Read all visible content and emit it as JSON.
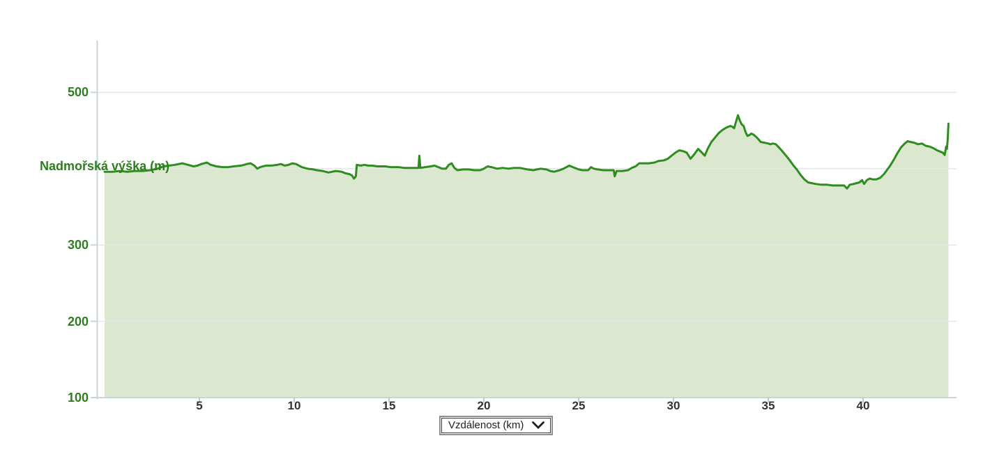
{
  "chart_data": {
    "type": "area",
    "title": "",
    "ylabel": "Nadmořská výška (m)",
    "xlabel": "Vzdálenost (km)",
    "x_unit": "km",
    "y_unit": "m",
    "xlim": [
      0,
      44.6
    ],
    "ylim": [
      100,
      568
    ],
    "grid": "horizontal-only",
    "legend": "none",
    "y_gridlines": [
      200,
      300,
      400,
      500
    ],
    "y_ticks": [
      {
        "value": 100,
        "label": "100"
      },
      {
        "value": 200,
        "label": "200"
      },
      {
        "value": 300,
        "label": "300"
      },
      {
        "value": 500,
        "label": "500"
      }
    ],
    "x_ticks": [
      {
        "value": 5,
        "label": "5"
      },
      {
        "value": 10,
        "label": "10"
      },
      {
        "value": 15,
        "label": "15"
      },
      {
        "value": 20,
        "label": "20"
      },
      {
        "value": 25,
        "label": "25"
      },
      {
        "value": 30,
        "label": "30"
      },
      {
        "value": 35,
        "label": "35"
      },
      {
        "value": 40,
        "label": "40"
      }
    ],
    "colors": {
      "line": "#2f8d20",
      "fill": "#dbe8cf",
      "grid": "#e2e7eb",
      "axis": "#c9d5dc",
      "x_tick_mark": "#aeb9c2",
      "y_label": "#2e7d1f",
      "x_label": "#333333"
    },
    "series": [
      {
        "name": "elevation-profile",
        "points": [
          [
            0,
            396
          ],
          [
            0.4,
            396
          ],
          [
            0.8,
            397
          ],
          [
            1.2,
            396
          ],
          [
            1.6,
            397
          ],
          [
            2,
            397
          ],
          [
            2.4,
            398
          ],
          [
            2.8,
            400
          ],
          [
            3.1,
            403
          ],
          [
            3.4,
            404
          ],
          [
            3.7,
            405
          ],
          [
            4.1,
            407
          ],
          [
            4.4,
            405
          ],
          [
            4.7,
            403
          ],
          [
            4.9,
            404
          ],
          [
            5.1,
            406
          ],
          [
            5.4,
            408
          ],
          [
            5.6,
            405
          ],
          [
            5.9,
            403
          ],
          [
            6.2,
            402
          ],
          [
            6.5,
            402
          ],
          [
            6.8,
            403
          ],
          [
            7.2,
            404
          ],
          [
            7.5,
            406
          ],
          [
            7.7,
            407
          ],
          [
            7.9,
            404
          ],
          [
            8.05,
            400
          ],
          [
            8.2,
            402
          ],
          [
            8.5,
            404
          ],
          [
            8.8,
            404
          ],
          [
            9.1,
            405
          ],
          [
            9.3,
            406
          ],
          [
            9.5,
            404
          ],
          [
            9.7,
            405
          ],
          [
            9.9,
            407
          ],
          [
            10.1,
            406
          ],
          [
            10.4,
            402
          ],
          [
            10.7,
            400
          ],
          [
            11,
            399
          ],
          [
            11.2,
            398
          ],
          [
            11.5,
            397
          ],
          [
            11.8,
            395
          ],
          [
            12,
            396
          ],
          [
            12.2,
            397
          ],
          [
            12.5,
            396
          ],
          [
            12.7,
            394
          ],
          [
            12.9,
            393
          ],
          [
            13.05,
            391
          ],
          [
            13.15,
            387
          ],
          [
            13.25,
            390
          ],
          [
            13.3,
            405
          ],
          [
            13.5,
            404
          ],
          [
            13.7,
            405
          ],
          [
            13.9,
            404
          ],
          [
            14.1,
            404
          ],
          [
            14.4,
            403
          ],
          [
            14.8,
            403
          ],
          [
            15.1,
            402
          ],
          [
            15.5,
            402
          ],
          [
            15.8,
            401
          ],
          [
            16.1,
            401
          ],
          [
            16.4,
            401
          ],
          [
            16.55,
            401
          ],
          [
            16.6,
            417
          ],
          [
            16.65,
            401
          ],
          [
            16.9,
            402
          ],
          [
            17.2,
            403
          ],
          [
            17.4,
            404
          ],
          [
            17.6,
            402
          ],
          [
            17.8,
            400
          ],
          [
            18,
            400
          ],
          [
            18.15,
            405
          ],
          [
            18.3,
            407
          ],
          [
            18.45,
            401
          ],
          [
            18.6,
            398
          ],
          [
            18.9,
            399
          ],
          [
            19.2,
            399
          ],
          [
            19.5,
            398
          ],
          [
            19.8,
            398
          ],
          [
            20,
            400
          ],
          [
            20.2,
            403
          ],
          [
            20.4,
            402
          ],
          [
            20.7,
            400
          ],
          [
            21,
            401
          ],
          [
            21.3,
            400
          ],
          [
            21.6,
            401
          ],
          [
            21.9,
            401
          ],
          [
            22.1,
            400
          ],
          [
            22.3,
            399
          ],
          [
            22.6,
            398
          ],
          [
            22.8,
            399
          ],
          [
            23,
            400
          ],
          [
            23.3,
            399
          ],
          [
            23.5,
            397
          ],
          [
            23.7,
            396
          ],
          [
            24,
            398
          ],
          [
            24.2,
            400
          ],
          [
            24.5,
            404
          ],
          [
            24.7,
            402
          ],
          [
            25,
            399
          ],
          [
            25.2,
            398
          ],
          [
            25.5,
            398
          ],
          [
            25.65,
            402
          ],
          [
            25.8,
            400
          ],
          [
            26,
            399
          ],
          [
            26.3,
            398
          ],
          [
            26.6,
            398
          ],
          [
            26.85,
            398
          ],
          [
            26.9,
            390
          ],
          [
            27,
            397
          ],
          [
            27.3,
            397
          ],
          [
            27.6,
            398
          ],
          [
            27.8,
            401
          ],
          [
            28,
            403
          ],
          [
            28.2,
            407
          ],
          [
            28.5,
            407
          ],
          [
            28.7,
            407
          ],
          [
            29,
            408
          ],
          [
            29.2,
            410
          ],
          [
            29.5,
            411
          ],
          [
            29.7,
            413
          ],
          [
            29.9,
            417
          ],
          [
            30.1,
            421
          ],
          [
            30.3,
            424
          ],
          [
            30.5,
            423
          ],
          [
            30.7,
            421
          ],
          [
            30.9,
            413
          ],
          [
            31.1,
            419
          ],
          [
            31.3,
            426
          ],
          [
            31.5,
            421
          ],
          [
            31.65,
            417
          ],
          [
            31.8,
            426
          ],
          [
            32,
            435
          ],
          [
            32.2,
            441
          ],
          [
            32.4,
            447
          ],
          [
            32.6,
            451
          ],
          [
            32.8,
            454
          ],
          [
            33,
            456
          ],
          [
            33.1,
            455
          ],
          [
            33.2,
            453
          ],
          [
            33.3,
            462
          ],
          [
            33.4,
            470
          ],
          [
            33.5,
            463
          ],
          [
            33.6,
            458
          ],
          [
            33.7,
            456
          ],
          [
            33.8,
            448
          ],
          [
            33.9,
            443
          ],
          [
            34,
            444
          ],
          [
            34.1,
            446
          ],
          [
            34.2,
            445
          ],
          [
            34.35,
            442
          ],
          [
            34.5,
            438
          ],
          [
            34.6,
            435
          ],
          [
            34.8,
            434
          ],
          [
            35,
            433
          ],
          [
            35.1,
            432
          ],
          [
            35.25,
            433
          ],
          [
            35.4,
            432
          ],
          [
            35.55,
            428
          ],
          [
            35.7,
            424
          ],
          [
            35.9,
            418
          ],
          [
            36.1,
            412
          ],
          [
            36.3,
            405
          ],
          [
            36.5,
            399
          ],
          [
            36.7,
            392
          ],
          [
            36.9,
            386
          ],
          [
            37.1,
            382
          ],
          [
            37.3,
            381
          ],
          [
            37.5,
            380
          ],
          [
            37.8,
            379
          ],
          [
            38.1,
            379
          ],
          [
            38.4,
            378
          ],
          [
            38.7,
            378
          ],
          [
            39,
            378
          ],
          [
            39.15,
            374
          ],
          [
            39.3,
            379
          ],
          [
            39.5,
            380
          ],
          [
            39.8,
            382
          ],
          [
            39.95,
            385
          ],
          [
            40.05,
            380
          ],
          [
            40.2,
            385
          ],
          [
            40.35,
            387
          ],
          [
            40.5,
            386
          ],
          [
            40.7,
            386
          ],
          [
            40.9,
            388
          ],
          [
            41.1,
            393
          ],
          [
            41.25,
            398
          ],
          [
            41.4,
            403
          ],
          [
            41.6,
            411
          ],
          [
            41.8,
            420
          ],
          [
            42,
            428
          ],
          [
            42.2,
            433
          ],
          [
            42.35,
            436
          ],
          [
            42.5,
            435
          ],
          [
            42.7,
            434
          ],
          [
            42.9,
            432
          ],
          [
            43.1,
            433
          ],
          [
            43.3,
            430
          ],
          [
            43.5,
            429
          ],
          [
            43.7,
            427
          ],
          [
            43.9,
            424
          ],
          [
            44.1,
            422
          ],
          [
            44.2,
            421
          ],
          [
            44.3,
            418
          ],
          [
            44.38,
            429
          ],
          [
            44.42,
            426
          ],
          [
            44.46,
            438
          ],
          [
            44.5,
            459
          ]
        ]
      }
    ]
  },
  "controls": {
    "x_axis_select": {
      "label": "Vzdálenost (km)",
      "icon": "chevron-down"
    }
  }
}
